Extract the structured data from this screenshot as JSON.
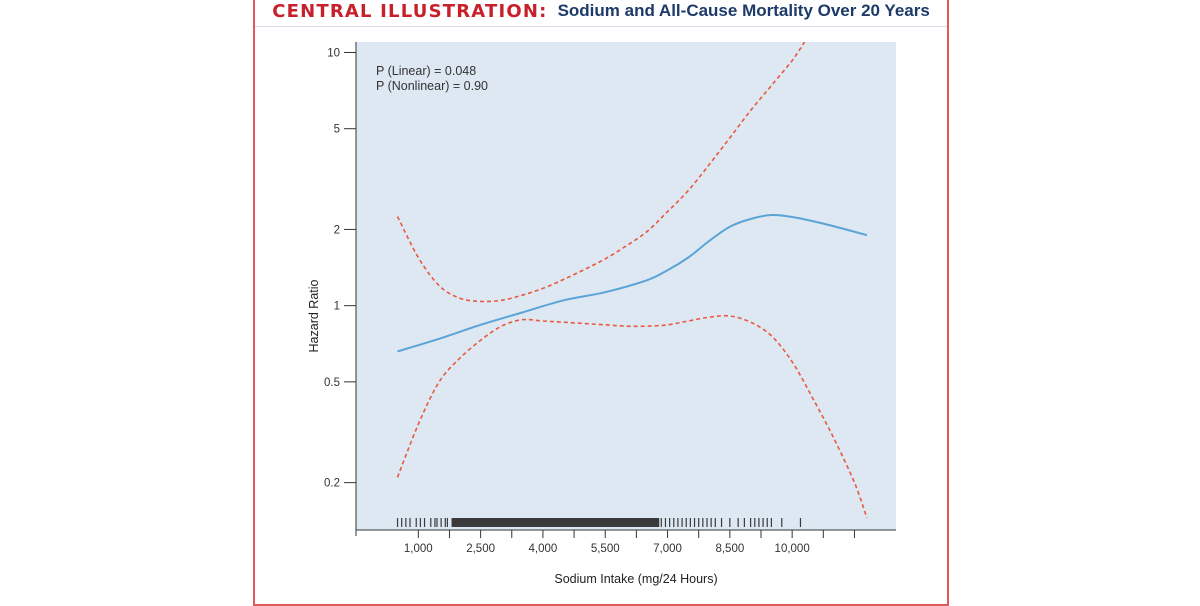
{
  "header": {
    "lead": "CENTRAL ILLUSTRATION:",
    "title": "Sodium and All-Cause Mortality Over 20 Years"
  },
  "colors": {
    "panel_border": "#e05a5a",
    "plot_background": "#dde8f3",
    "estimate_line": "#5aa4d6",
    "ci_line": "#e8593f",
    "rug": "#3a3a3a"
  },
  "chart_data": {
    "type": "line",
    "title": "",
    "xlabel": "Sodium Intake (mg/24 Hours)",
    "ylabel": "Hazard Ratio",
    "y_scale": "log",
    "xlim": [
      -500,
      12500
    ],
    "ylim": [
      0.13,
      11
    ],
    "x_ticks": [
      1000,
      2500,
      4000,
      5500,
      7000,
      8500,
      10000
    ],
    "x_tick_labels": [
      "1,000",
      "2,500",
      "4,000",
      "5,500",
      "7,000",
      "8,500",
      "10,000"
    ],
    "x_minor_ticks": [
      1750,
      3250,
      4750,
      6250,
      7750,
      9250,
      10750,
      11500
    ],
    "y_ticks": [
      0.2,
      0.5,
      1,
      2,
      5,
      10
    ],
    "y_tick_labels": [
      "0.2",
      "0.5",
      "1",
      "2",
      "5",
      "10"
    ],
    "grid": false,
    "annotations": [
      "P (Linear) = 0.048",
      "P (Nonlinear) = 0.90"
    ],
    "series": [
      {
        "style": "solid",
        "x": [
          500,
          1500,
          2500,
          3500,
          4500,
          5500,
          6500,
          7000,
          7500,
          8000,
          8500,
          9000,
          9500,
          10000,
          10800,
          11800
        ],
        "y": [
          0.66,
          0.74,
          0.84,
          0.94,
          1.05,
          1.13,
          1.26,
          1.38,
          1.55,
          1.8,
          2.05,
          2.2,
          2.28,
          2.24,
          2.1,
          1.9
        ]
      },
      {
        "style": "dashed",
        "x": [
          500,
          1000,
          1500,
          2000,
          2500,
          3000,
          3500,
          4000,
          4500,
          5000,
          5500,
          6000,
          6500,
          7000,
          7500,
          8000,
          8500,
          9000,
          9500,
          10000,
          10300
        ],
        "y": [
          2.25,
          1.55,
          1.2,
          1.07,
          1.04,
          1.05,
          1.1,
          1.17,
          1.27,
          1.39,
          1.53,
          1.72,
          1.96,
          2.35,
          2.85,
          3.6,
          4.6,
          5.9,
          7.4,
          9.3,
          11.0
        ]
      },
      {
        "style": "dashed",
        "x": [
          500,
          1000,
          1500,
          2000,
          2500,
          3000,
          3500,
          4000,
          4500,
          5000,
          5500,
          6000,
          6500,
          7000,
          7500,
          8000,
          8500,
          9000,
          9500,
          10000,
          10500,
          11000,
          11500,
          11800
        ],
        "y": [
          0.21,
          0.34,
          0.5,
          0.62,
          0.73,
          0.83,
          0.88,
          0.87,
          0.86,
          0.85,
          0.84,
          0.83,
          0.83,
          0.84,
          0.87,
          0.9,
          0.91,
          0.86,
          0.76,
          0.6,
          0.43,
          0.3,
          0.2,
          0.145
        ]
      }
    ],
    "rug_dense_ranges": [
      [
        1800,
        6800
      ]
    ],
    "rug_ticks": [
      500,
      600,
      700,
      800,
      950,
      1050,
      1150,
      1300,
      1400,
      1450,
      1550,
      1650,
      1700,
      6850,
      6950,
      7050,
      7150,
      7250,
      7350,
      7450,
      7550,
      7650,
      7750,
      7850,
      7950,
      8050,
      8150,
      8300,
      8500,
      8700,
      8850,
      9000,
      9100,
      9200,
      9300,
      9400,
      9500,
      9750,
      10200
    ]
  }
}
